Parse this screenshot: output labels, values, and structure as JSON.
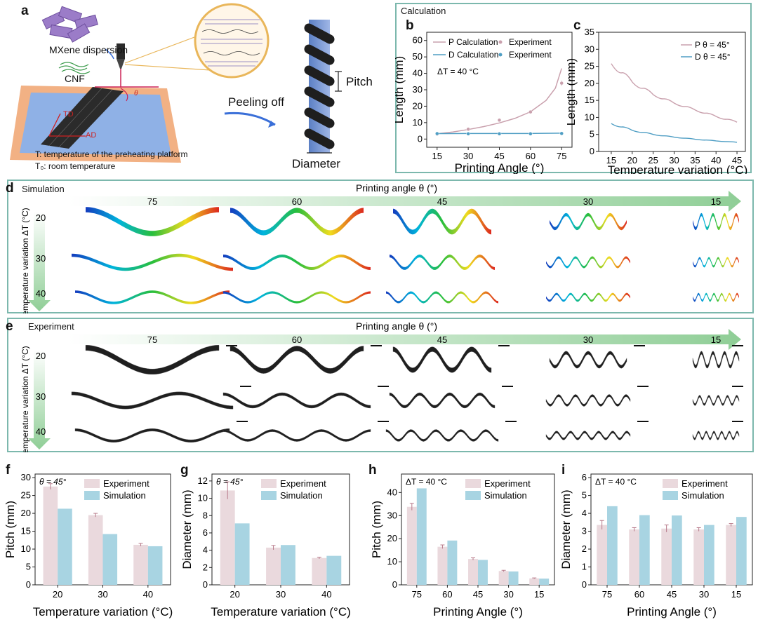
{
  "colors": {
    "pink": "#c9a0ad",
    "blue": "#4f9ec4",
    "bar_pink": "#ead9dd",
    "bar_blue": "#a8d4e2",
    "frame": "#7cb8ad",
    "arrow_green": "#8fce96",
    "helix_blue": "#6f8fd0",
    "bed_orange": "#f2b184",
    "bed_blue": "#8fb1e6",
    "red_text": "#cc2222"
  },
  "panel_a": {
    "label": "a",
    "mxene": "MXene dispersion",
    "cnf": "CNF",
    "theta": "θ",
    "td": "TD",
    "ad": "AD",
    "peel": "Peeling off",
    "pitch": "Pitch",
    "diameter": "Diameter",
    "note_t": "T:  temperature of the preheating platform",
    "note_t0": "T₀:  room temperature"
  },
  "calc_box_title": "Calculation",
  "panel_d": {
    "label": "d",
    "mode": "Simulation",
    "angle_title": "Printing angle θ (°)",
    "angles": [
      "75",
      "60",
      "45",
      "30",
      "15"
    ],
    "dt_title": "Temperature variation  ΔT (°C)",
    "dts": [
      "20",
      "30",
      "40"
    ]
  },
  "panel_e": {
    "label": "e",
    "mode": "Experiment",
    "angle_title": "Printing angle θ (°)",
    "angles": [
      "75",
      "60",
      "45",
      "30",
      "15"
    ],
    "dt_title": "Temperature variation ΔT (°C)",
    "dts": [
      "20",
      "30",
      "40"
    ]
  },
  "chart_data": [
    {
      "id": "b",
      "type": "line",
      "title": "",
      "xlabel": "Printing Angle (°)",
      "ylabel": "Length (mm)",
      "xlim": [
        10,
        80
      ],
      "ylim": [
        -5,
        65
      ],
      "xticks": [
        15,
        30,
        45,
        60,
        75
      ],
      "yticks": [
        0,
        10,
        20,
        30,
        40,
        50,
        60
      ],
      "annotation": "ΔT = 40 °C",
      "legend": [
        "P Calculation",
        "Experiment",
        "D Calculation",
        "Experiment"
      ],
      "series": [
        {
          "name": "P Calculation",
          "kind": "line",
          "color": "pink",
          "x": [
            15,
            22.5,
            30,
            37.5,
            45,
            52.5,
            60,
            67.5,
            72,
            75
          ],
          "y": [
            3.2,
            4.3,
            5.8,
            7.6,
            9.8,
            12.6,
            16.6,
            23.5,
            31,
            43
          ]
        },
        {
          "name": "P Experiment",
          "kind": "scatter",
          "color": "pink",
          "x": [
            15,
            30,
            45,
            60,
            75
          ],
          "y": [
            3,
            6,
            11.5,
            16.5,
            34
          ],
          "err": [
            0.3,
            0.4,
            0.5,
            0.8,
            1.5
          ]
        },
        {
          "name": "D Calculation",
          "kind": "line",
          "color": "blue",
          "x": [
            15,
            30,
            45,
            60,
            75
          ],
          "y": [
            3.3,
            3.4,
            3.4,
            3.4,
            3.6
          ]
        },
        {
          "name": "D Experiment",
          "kind": "scatter",
          "color": "blue",
          "x": [
            15,
            30,
            45,
            60,
            75
          ],
          "y": [
            3.3,
            3.2,
            3.2,
            3.2,
            3.4
          ],
          "err": [
            0,
            0,
            0,
            0,
            0
          ]
        }
      ]
    },
    {
      "id": "c",
      "type": "line",
      "title": "",
      "xlabel": "Temperature variation (°C)",
      "ylabel": "Length (mm)",
      "xlim": [
        12,
        47
      ],
      "ylim": [
        0,
        35
      ],
      "xticks": [
        15,
        20,
        25,
        30,
        35,
        40,
        45
      ],
      "yticks": [
        0,
        5,
        10,
        15,
        20,
        25,
        30,
        35
      ],
      "legend": [
        "P θ = 45°",
        "D θ = 45°"
      ],
      "series": [
        {
          "name": "P θ = 45°",
          "kind": "line",
          "color": "pink",
          "x": [
            15,
            20,
            25,
            30,
            35,
            40,
            45
          ],
          "y": [
            25.8,
            20.4,
            16.7,
            14.2,
            12.2,
            10.3,
            8.6
          ]
        },
        {
          "name": "D θ = 45°",
          "kind": "line",
          "color": "blue",
          "x": [
            15,
            20,
            25,
            30,
            35,
            40,
            45
          ],
          "y": [
            8.2,
            6.2,
            5,
            4.2,
            3.6,
            3.1,
            2.7
          ]
        }
      ]
    },
    {
      "id": "f",
      "type": "bar",
      "annotation": "θ = 45°",
      "xlabel": "Temperature variation (°C)",
      "ylabel": "Pitch (mm)",
      "ylim": [
        0,
        31
      ],
      "yticks": [
        0,
        5,
        10,
        15,
        20,
        25,
        30
      ],
      "categories": [
        "20",
        "30",
        "40"
      ],
      "series": [
        {
          "name": "Experiment",
          "values": [
            27.5,
            19.5,
            11.2
          ],
          "err": [
            0.8,
            0.5,
            0.4
          ]
        },
        {
          "name": "Simulation",
          "values": [
            21.3,
            14.2,
            10.8
          ],
          "err": [
            0,
            0,
            0
          ]
        }
      ]
    },
    {
      "id": "g",
      "type": "bar",
      "annotation": "θ = 45°",
      "xlabel": "Temperature variation (°C)",
      "ylabel": "Diameter (mm)",
      "ylim": [
        0,
        12.8
      ],
      "yticks": [
        0,
        2,
        4,
        6,
        8,
        10,
        12
      ],
      "categories": [
        "20",
        "30",
        "40"
      ],
      "series": [
        {
          "name": "Experiment",
          "values": [
            10.9,
            4.3,
            3.1
          ],
          "err": [
            1.0,
            0.25,
            0.1
          ]
        },
        {
          "name": "Simulation",
          "values": [
            7.1,
            4.6,
            3.35
          ],
          "err": [
            0,
            0,
            0
          ]
        }
      ]
    },
    {
      "id": "h",
      "type": "bar",
      "annotation": "ΔT = 40 °C",
      "xlabel": "Printing Angle (°)",
      "ylabel": "Pitch (mm)",
      "ylim": [
        0,
        48
      ],
      "yticks": [
        0,
        10,
        20,
        30,
        40
      ],
      "categories": [
        "75",
        "60",
        "45",
        "30",
        "15"
      ],
      "series": [
        {
          "name": "Experiment",
          "values": [
            33.8,
            16.5,
            11.2,
            6.0,
            2.8
          ],
          "err": [
            1.5,
            0.8,
            0.5,
            0.3,
            0.2
          ]
        },
        {
          "name": "Simulation",
          "values": [
            41.8,
            19.2,
            10.8,
            5.8,
            2.7
          ],
          "err": [
            0,
            0,
            0,
            0,
            0
          ]
        }
      ]
    },
    {
      "id": "i",
      "type": "bar",
      "annotation": "ΔT = 40 °C",
      "xlabel": "Printing Angle (°)",
      "ylabel": "Diameter (mm)",
      "ylim": [
        0,
        6.2
      ],
      "yticks": [
        0,
        1,
        2,
        3,
        4,
        5,
        6
      ],
      "categories": [
        "75",
        "60",
        "45",
        "30",
        "15"
      ],
      "series": [
        {
          "name": "Experiment",
          "values": [
            3.35,
            3.1,
            3.15,
            3.1,
            3.35
          ],
          "err": [
            0.25,
            0.1,
            0.2,
            0.1,
            0.08
          ]
        },
        {
          "name": "Simulation",
          "values": [
            4.4,
            3.9,
            3.88,
            3.35,
            3.8
          ],
          "err": [
            0,
            0,
            0,
            0,
            0
          ]
        }
      ]
    }
  ]
}
